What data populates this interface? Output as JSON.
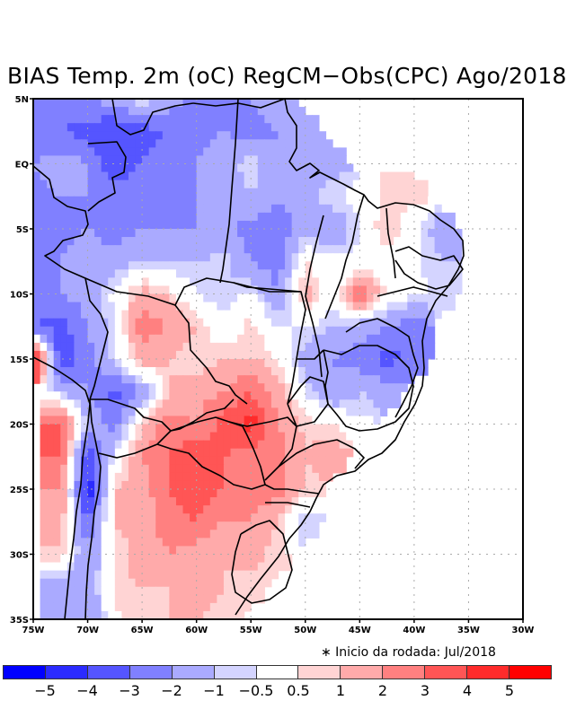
{
  "title": "BIAS Temp. 2m (oC) RegCM−Obs(CPC) Ago/2018",
  "note": "∗ Inicio da rodada: Jul/2018",
  "chart_data": {
    "type": "heatmap",
    "title": "BIAS Temp. 2m (oC) RegCM−Obs(CPC) Ago/2018",
    "xlabel": "",
    "ylabel": "",
    "x_ticks": [
      "75W",
      "70W",
      "65W",
      "60W",
      "55W",
      "50W",
      "45W",
      "40W",
      "35W",
      "30W"
    ],
    "y_ticks": [
      "5N",
      "EQ",
      "5S",
      "10S",
      "15S",
      "20S",
      "25S",
      "30S",
      "35S"
    ],
    "x_range": [
      -75,
      -30
    ],
    "y_range": [
      -35,
      5
    ],
    "grid": true,
    "legend": "bottom",
    "colorbar": {
      "labels": [
        "−5",
        "−4",
        "−3",
        "−2",
        "−1",
        "−0.5",
        "0.5",
        "1",
        "2",
        "3",
        "4",
        "5"
      ],
      "colors": [
        "#0000ff",
        "#2b2bff",
        "#5555ff",
        "#8080ff",
        "#aaaaff",
        "#d4d4ff",
        "#ffffff",
        "#ffd4d4",
        "#ffaaaa",
        "#ff8080",
        "#ff5555",
        "#ff2b2b",
        "#ff0000"
      ]
    },
    "grid_lon": [
      -75,
      -72.5,
      -70,
      -67.5,
      -65,
      -62.5,
      -60,
      -57.5,
      -55,
      -52.5,
      -50,
      -47.5,
      -45,
      -42.5,
      -40,
      -37.5,
      -35
    ],
    "grid_lat": [
      5,
      2.5,
      0,
      -2.5,
      -5,
      -7.5,
      -10,
      -12.5,
      -15,
      -17.5,
      -20,
      -22.5,
      -25,
      -27.5,
      -30,
      -32.5,
      -35
    ],
    "bias_values": [
      [
        -2,
        -2.5,
        -2,
        -1.5,
        -0.3,
        -1.5,
        -2.5,
        -2,
        -2,
        -1.5,
        null,
        null,
        null,
        null,
        null,
        null,
        null
      ],
      [
        -2.5,
        -3,
        -3.5,
        -4,
        -3.5,
        -3,
        -2.5,
        -2,
        -2.5,
        -2,
        -2,
        null,
        null,
        null,
        null,
        null,
        null
      ],
      [
        -2,
        -1.5,
        -2,
        -4,
        -3,
        -2.5,
        -2,
        -1.5,
        -0.5,
        -2,
        -2,
        -1.5,
        null,
        null,
        null,
        null,
        null
      ],
      [
        -2.5,
        -2,
        -2,
        -2.5,
        -2,
        -2.5,
        -2,
        -2,
        -1,
        -2,
        -1.5,
        -0.5,
        -0.3,
        0.7,
        0.8,
        null,
        null
      ],
      [
        -2,
        -2.5,
        -2,
        -2.5,
        -2,
        -2,
        -2,
        -1.5,
        -2.5,
        -2.5,
        -1.5,
        -2,
        -0.5,
        1.2,
        -0.3,
        -1.5,
        null
      ],
      [
        -2.5,
        -2,
        -1.5,
        -1.5,
        -1,
        -1,
        -1,
        -0.7,
        -2,
        -2.5,
        0.5,
        -0.3,
        -0.3,
        -0.3,
        -0.3,
        -1,
        null
      ],
      [
        -2,
        -2,
        -1.5,
        -0.3,
        1.5,
        0.8,
        -0.5,
        -1,
        -0.3,
        -2,
        1.5,
        -0.3,
        3,
        0.3,
        -0.3,
        -0.7,
        null
      ],
      [
        -3,
        -3.5,
        -2,
        -0.5,
        2.5,
        2,
        1,
        -0.3,
        0.8,
        -0.5,
        -0.5,
        -1,
        -1.5,
        -2,
        -2.5,
        null,
        null
      ],
      [
        5,
        -4,
        -2.5,
        -0.5,
        1.5,
        1,
        0.5,
        1,
        1,
        0.5,
        -1.5,
        -2,
        -2.5,
        -3.5,
        -2.5,
        null,
        null
      ],
      [
        null,
        -1,
        -2,
        -3.5,
        -2,
        1,
        1.5,
        2,
        3,
        1.5,
        -0.5,
        -2,
        -1,
        -1.5,
        null,
        null,
        null
      ],
      [
        null,
        3,
        -1,
        -2.5,
        1,
        2.5,
        2,
        3.5,
        4.5,
        2,
        0.8,
        0.5,
        -0.3,
        null,
        null,
        null,
        null
      ],
      [
        null,
        3,
        -4,
        -0.5,
        2,
        3,
        4,
        3,
        2.5,
        2.5,
        1,
        1.5,
        null,
        null,
        null,
        null,
        null
      ],
      [
        null,
        2,
        -5,
        1,
        1.5,
        3,
        3.5,
        3,
        2.5,
        2.5,
        0.8,
        null,
        null,
        null,
        null,
        null,
        null
      ],
      [
        null,
        1.5,
        -3,
        1,
        1.5,
        2.5,
        3,
        2,
        2,
        1,
        -1,
        null,
        null,
        null,
        null,
        null,
        null
      ],
      [
        null,
        0.8,
        -2,
        0.5,
        1.5,
        2,
        1.5,
        1,
        1.5,
        0.5,
        null,
        null,
        null,
        null,
        null,
        null,
        null
      ],
      [
        null,
        -1.5,
        -2,
        0.8,
        1,
        1,
        1.5,
        1,
        0.5,
        null,
        null,
        null,
        null,
        null,
        null,
        null,
        null
      ],
      [
        null,
        -1.5,
        -2,
        0.3,
        0.8,
        1,
        1,
        0.5,
        null,
        null,
        null,
        null,
        null,
        null,
        null,
        null,
        null
      ]
    ]
  }
}
